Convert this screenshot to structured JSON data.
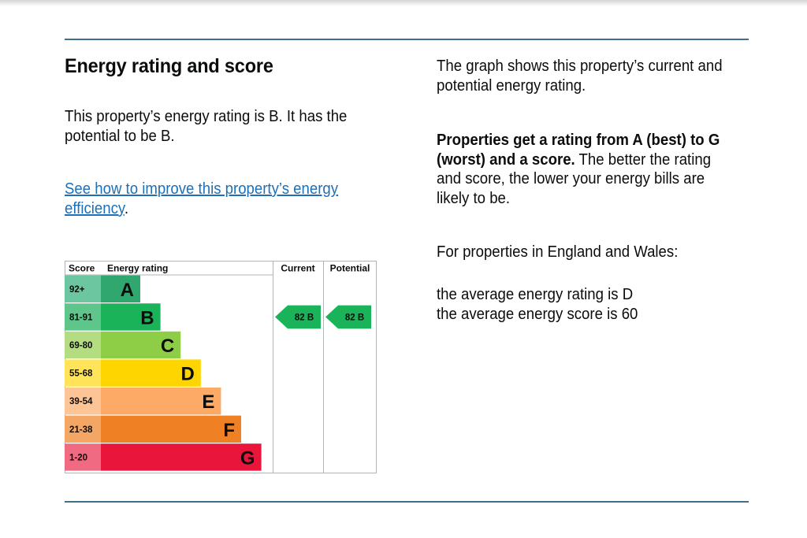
{
  "heading": "Energy rating and score",
  "summary": "This property’s energy rating is B. It has the potential to be B.",
  "improve_link": "See how to improve this property’s energy efficiency",
  "improve_link_suffix": ".",
  "right": {
    "graph_intro": "The graph shows this property’s current and potential energy rating.",
    "rating_bold": "Properties get a rating from A (best) to G (worst) and a score.",
    "rating_rest": " The better the rating and score, the lower your energy bills are likely to be.",
    "region": "For properties in England and Wales:",
    "average_rating": "the average energy rating is D",
    "average_score": "the average energy score is 60"
  },
  "chart_data": {
    "type": "table",
    "headers": {
      "score": "Score",
      "rating": "Energy rating",
      "current": "Current",
      "potential": "Potential"
    },
    "bands": [
      {
        "score": "92+",
        "letter": "A",
        "color": "#30a76e",
        "score_bg": "#6cc69f"
      },
      {
        "score": "81-91",
        "letter": "B",
        "color": "#1bb35a",
        "score_bg": "#5ec68a"
      },
      {
        "score": "69-80",
        "letter": "C",
        "color": "#8dce46",
        "score_bg": "#b4dd82"
      },
      {
        "score": "55-68",
        "letter": "D",
        "color": "#ffd500",
        "score_bg": "#ffe45a"
      },
      {
        "score": "39-54",
        "letter": "E",
        "color": "#fcaa65",
        "score_bg": "#fdc596"
      },
      {
        "score": "21-38",
        "letter": "F",
        "color": "#ef8023",
        "score_bg": "#f4a664"
      },
      {
        "score": "1-20",
        "letter": "G",
        "color": "#e9153b",
        "score_bg": "#f06a82"
      }
    ],
    "current": {
      "score": 82,
      "letter": "B",
      "label": "82  B",
      "color": "#1bb35a"
    },
    "potential": {
      "score": 82,
      "letter": "B",
      "label": "82  B",
      "color": "#1bb35a"
    }
  }
}
